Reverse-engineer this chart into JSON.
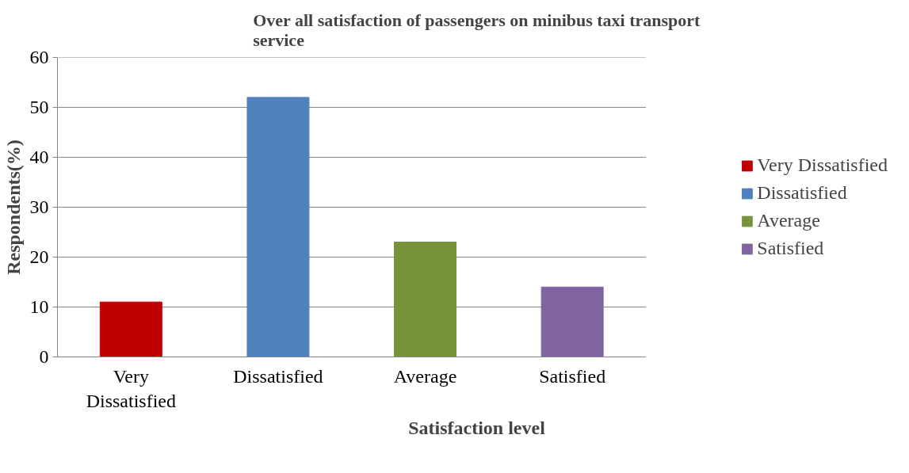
{
  "chart_data": {
    "type": "bar",
    "title": "Over all satisfaction of passengers on minibus taxi transport service",
    "xlabel": "Satisfaction level",
    "ylabel": "Respondents(%)",
    "categories": [
      "Very Dissatisfied",
      "Dissatisfied",
      "Average",
      "Satisfied"
    ],
    "stacked": true,
    "series": [
      {
        "name": "Very Dissatisfied",
        "color": "#c00000",
        "values": [
          11,
          null,
          null,
          null
        ]
      },
      {
        "name": "Dissatisfied",
        "color": "#4f81bd",
        "values": [
          null,
          52,
          null,
          null
        ]
      },
      {
        "name": "Average",
        "color": "#77933c",
        "values": [
          null,
          null,
          23,
          null
        ]
      },
      {
        "name": "Satisfied",
        "color": "#8064a2",
        "values": [
          null,
          null,
          null,
          14
        ]
      }
    ],
    "ylim": [
      0,
      60
    ],
    "yticks": [
      0,
      10,
      20,
      30,
      40,
      50,
      60
    ],
    "grid": "y",
    "legend": "right"
  }
}
